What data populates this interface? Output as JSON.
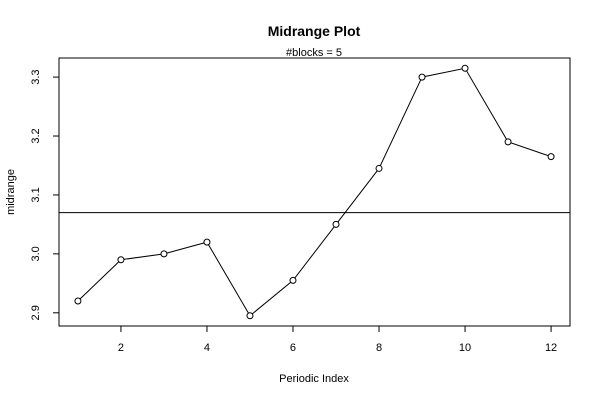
{
  "chart_data": {
    "type": "line",
    "title": "Midrange Plot",
    "subtitle": "#blocks =  5",
    "xlabel": "Periodic Index",
    "ylabel": "midrange",
    "x": [
      1,
      2,
      3,
      4,
      5,
      6,
      7,
      8,
      9,
      10,
      11,
      12
    ],
    "y": [
      2.92,
      2.99,
      3.0,
      3.02,
      2.895,
      2.955,
      3.05,
      3.145,
      3.3,
      3.315,
      3.19,
      3.165
    ],
    "reference_line": 3.07,
    "xticks": [
      2,
      4,
      6,
      8,
      10,
      12
    ],
    "yticks": [
      2.9,
      3.0,
      3.1,
      3.2,
      3.3
    ],
    "xtick_labels": [
      "2",
      "4",
      "6",
      "8",
      "10",
      "12"
    ],
    "ytick_labels": [
      "2.9",
      "3.0",
      "3.1",
      "3.2",
      "3.3"
    ],
    "xlim": [
      0.56,
      12.44
    ],
    "ylim": [
      2.8776,
      3.3324
    ],
    "grid": false,
    "legend": "none",
    "colors": {
      "line": "#000000",
      "point_fill": "#ffffff",
      "axis": "#000000"
    }
  }
}
